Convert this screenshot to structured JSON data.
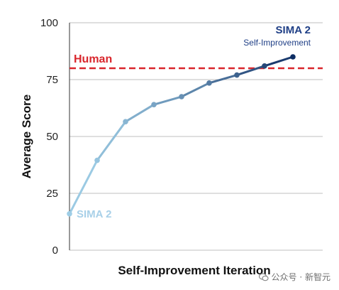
{
  "chart_data": {
    "type": "line",
    "title": "",
    "xlabel": "Self-Improvement Iteration",
    "ylabel": "Average Score",
    "ylim": [
      0,
      100
    ],
    "yticks": [
      0,
      25,
      50,
      75,
      100
    ],
    "ytick_labels": [
      "0",
      "25",
      "50",
      "75",
      "100"
    ],
    "grid": "horizontal",
    "x": [
      0,
      1,
      2,
      3,
      4,
      5,
      6,
      7,
      8
    ],
    "values": [
      16,
      39.5,
      56.5,
      64,
      67.5,
      73.5,
      77,
      81,
      85
    ],
    "series_label_start": "SIMA 2",
    "series_label_end": "SIMA 2",
    "series_label_end_sub": "Self-Improvement",
    "reference_line": {
      "label": "Human",
      "value": 80,
      "color": "#d9262c"
    },
    "colors": {
      "start": "#9ecde6",
      "end": "#0d2d63",
      "grid": "#bfbfbf",
      "axis": "#333333",
      "label_start": "#a8d0e8",
      "label_end": "#1f3f86"
    }
  },
  "watermark": {
    "text": "公众号 · 新智元"
  }
}
